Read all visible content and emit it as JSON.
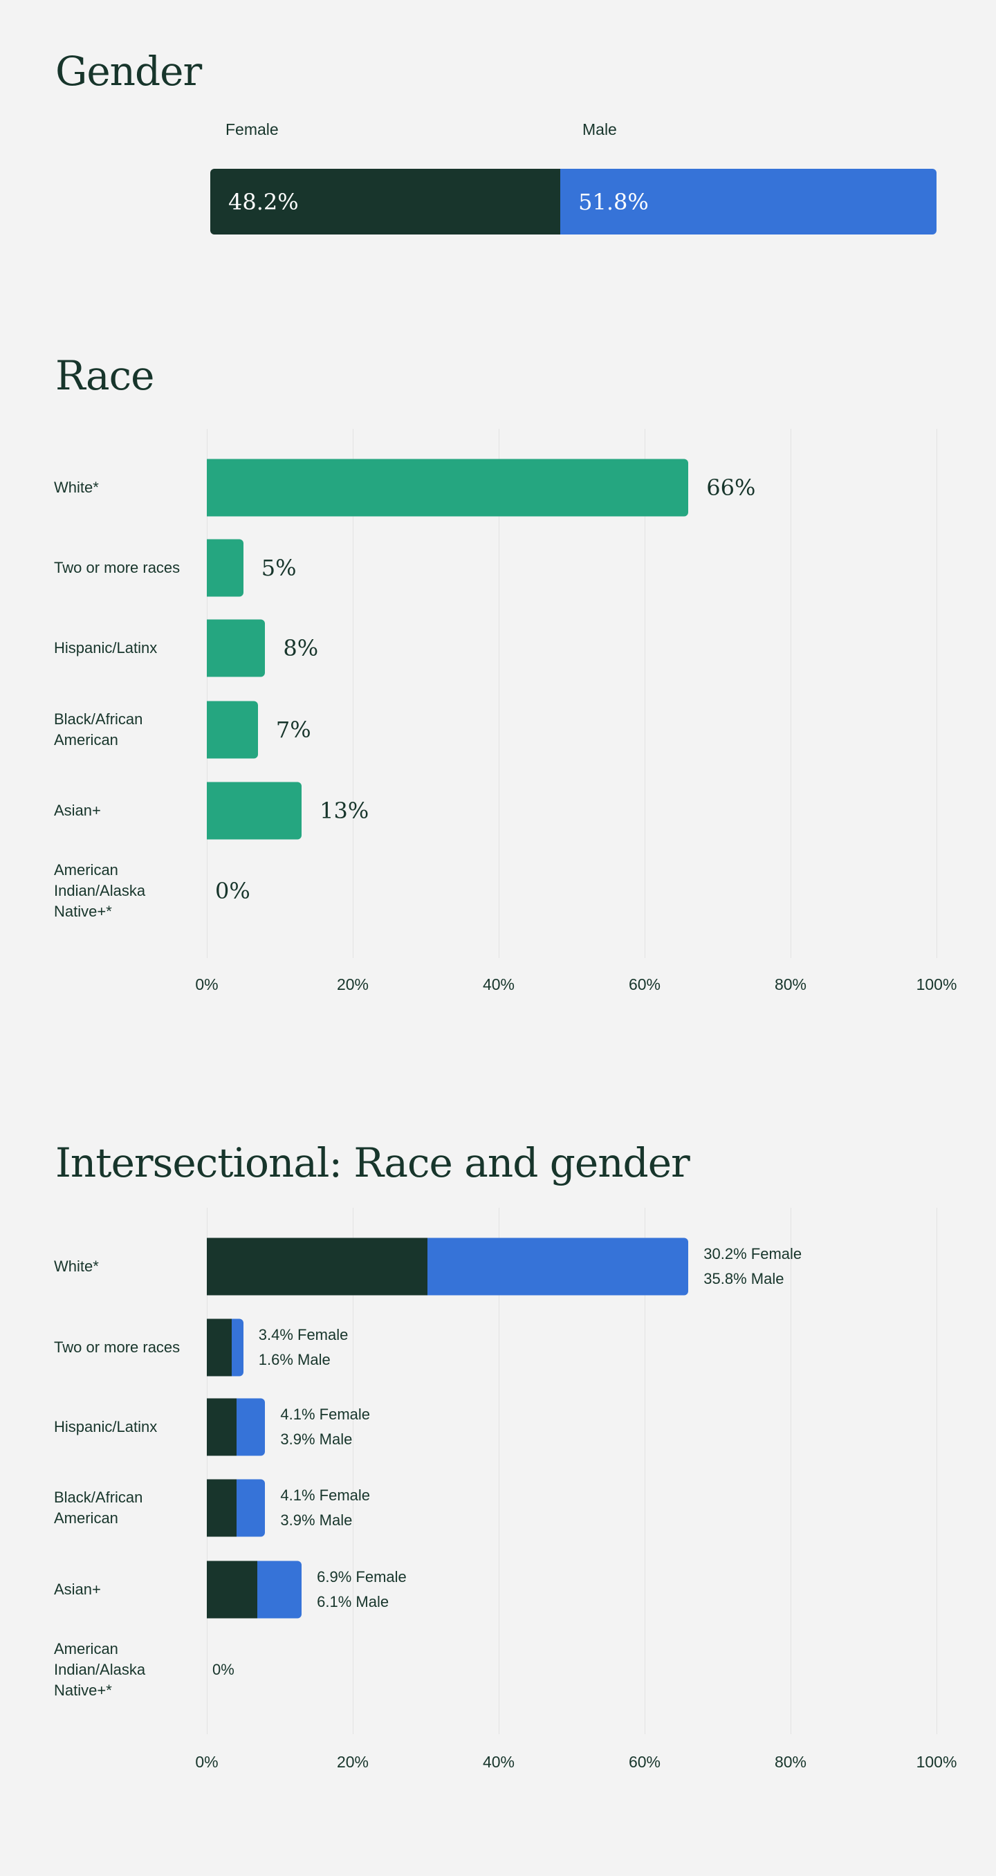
{
  "colors": {
    "female": "#18352c",
    "male": "#3673d8",
    "race": "#25a680",
    "background": "#f3f3f3"
  },
  "chart_data": [
    {
      "type": "bar",
      "title": "Gender",
      "orientation": "horizontal-stacked",
      "categories": [
        "Female",
        "Male"
      ],
      "values": [
        48.2,
        51.8
      ],
      "labels": [
        "48.2%",
        "51.8%"
      ]
    },
    {
      "type": "bar",
      "title": "Race",
      "orientation": "horizontal",
      "categories": [
        "White*",
        "Two or more races",
        "Hispanic/Latinx",
        "Black/African American",
        "Asian+",
        "American Indian/Alaska Native+*"
      ],
      "values": [
        66,
        5,
        8,
        7,
        13,
        0
      ],
      "labels": [
        "66%",
        "5%",
        "8%",
        "7%",
        "13%",
        "0%"
      ],
      "xlim": [
        0,
        100
      ],
      "xticks": [
        "0%",
        "20%",
        "40%",
        "60%",
        "80%",
        "100%"
      ],
      "grid": true
    },
    {
      "type": "bar",
      "title": "Intersectional: Race and gender",
      "orientation": "horizontal-stacked",
      "categories": [
        "White*",
        "Two or more races",
        "Hispanic/Latinx",
        "Black/African American",
        "Asian+",
        "American Indian/Alaska Native+*"
      ],
      "series": [
        {
          "name": "Female",
          "values": [
            30.2,
            3.4,
            4.1,
            4.1,
            6.9,
            0
          ]
        },
        {
          "name": "Male",
          "values": [
            35.8,
            1.6,
            3.9,
            3.9,
            6.1,
            0
          ]
        }
      ],
      "labels": [
        [
          "30.2% Female",
          "35.8% Male"
        ],
        [
          "3.4% Female",
          "1.6% Male"
        ],
        [
          "4.1% Female",
          "3.9% Male"
        ],
        [
          "4.1% Female",
          "3.9% Male"
        ],
        [
          "6.9% Female",
          "6.1% Male"
        ],
        [
          "0%"
        ]
      ],
      "xlim": [
        0,
        100
      ],
      "xticks": [
        "0%",
        "20%",
        "40%",
        "60%",
        "80%",
        "100%"
      ],
      "grid": true
    }
  ]
}
